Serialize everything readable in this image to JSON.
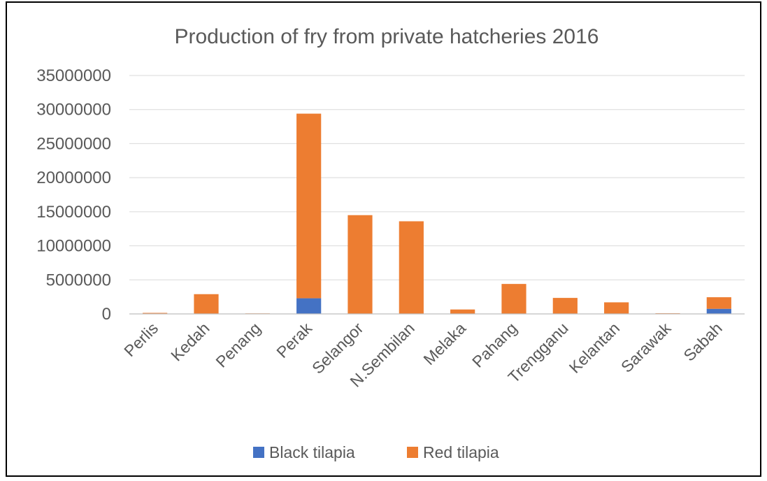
{
  "chart_data": {
    "type": "bar",
    "stacked": true,
    "title": "Production of fry from private hatcheries 2016",
    "categories": [
      "Perlis",
      "Kedah",
      "Penang",
      "Perak",
      "Selangor",
      "N.Sembilan",
      "Melaka",
      "Pahang",
      "Trengganu",
      "Kelantan",
      "Sarawak",
      "Sabah"
    ],
    "series": [
      {
        "name": "Black tilapia",
        "color": "#4472c4",
        "values": [
          0,
          0,
          0,
          2300000,
          0,
          0,
          0,
          0,
          0,
          0,
          0,
          750000
        ]
      },
      {
        "name": "Red tilapia",
        "color": "#ed7d31",
        "values": [
          150000,
          2900000,
          80000,
          27100000,
          14500000,
          13600000,
          650000,
          4400000,
          2350000,
          1700000,
          100000,
          1700000
        ]
      }
    ],
    "ylim": [
      0,
      35000000
    ],
    "yticks": [
      "0",
      "5000000",
      "10000000",
      "15000000",
      "20000000",
      "25000000",
      "30000000",
      "35000000"
    ],
    "grid": true,
    "legend": "bottom"
  }
}
